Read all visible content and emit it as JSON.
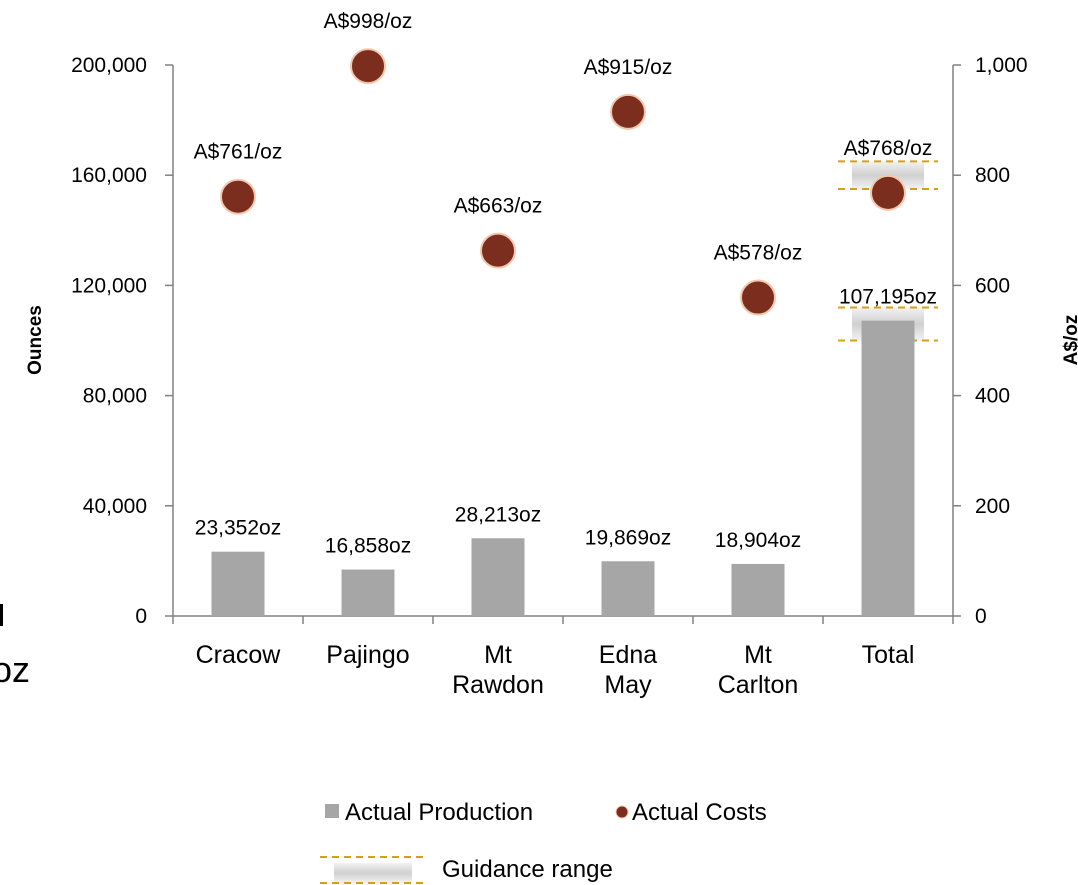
{
  "chart_data": {
    "type": "bar",
    "categories": [
      [
        "Cracow"
      ],
      [
        "Pajingo"
      ],
      [
        "Mt",
        "Rawdon"
      ],
      [
        "Edna",
        "May"
      ],
      [
        "Mt",
        "Carlton"
      ],
      [
        "Total"
      ]
    ],
    "ylabel_left": "Ounces",
    "ylabel_right": "A$/oz",
    "ylim_left": [
      0,
      200000
    ],
    "ylim_right": [
      0,
      1000
    ],
    "yticks_left": [
      "0",
      "40,000",
      "80,000",
      "120,000",
      "160,000",
      "200,000"
    ],
    "yticks_right": [
      "0",
      "200",
      "400",
      "600",
      "800",
      "1,000"
    ],
    "series": [
      {
        "name": "Actual Production",
        "type": "bar",
        "axis": "left",
        "color": "#a6a6a6",
        "values": [
          23352,
          16858,
          28213,
          19869,
          18904,
          107195
        ],
        "labels": [
          "23,352oz",
          "16,858oz",
          "28,213oz",
          "19,869oz",
          "18,904oz",
          "107,195oz"
        ]
      },
      {
        "name": "Actual Costs",
        "type": "scatter",
        "axis": "right",
        "color": "#7b2e1d",
        "values": [
          761,
          998,
          663,
          915,
          578,
          768
        ],
        "labels": [
          "A$761/oz",
          "A$998/oz",
          "A$663/oz",
          "A$915/oz",
          "A$578/oz",
          "A$768/oz"
        ]
      }
    ],
    "guidance": {
      "name": "Guidance range",
      "color": "#d4a017",
      "production_range": [
        100000,
        112000
      ],
      "cost_range": [
        775,
        825
      ]
    },
    "legend_position": "bottom"
  },
  "fragments": {
    "left_edge_text": "oz"
  }
}
